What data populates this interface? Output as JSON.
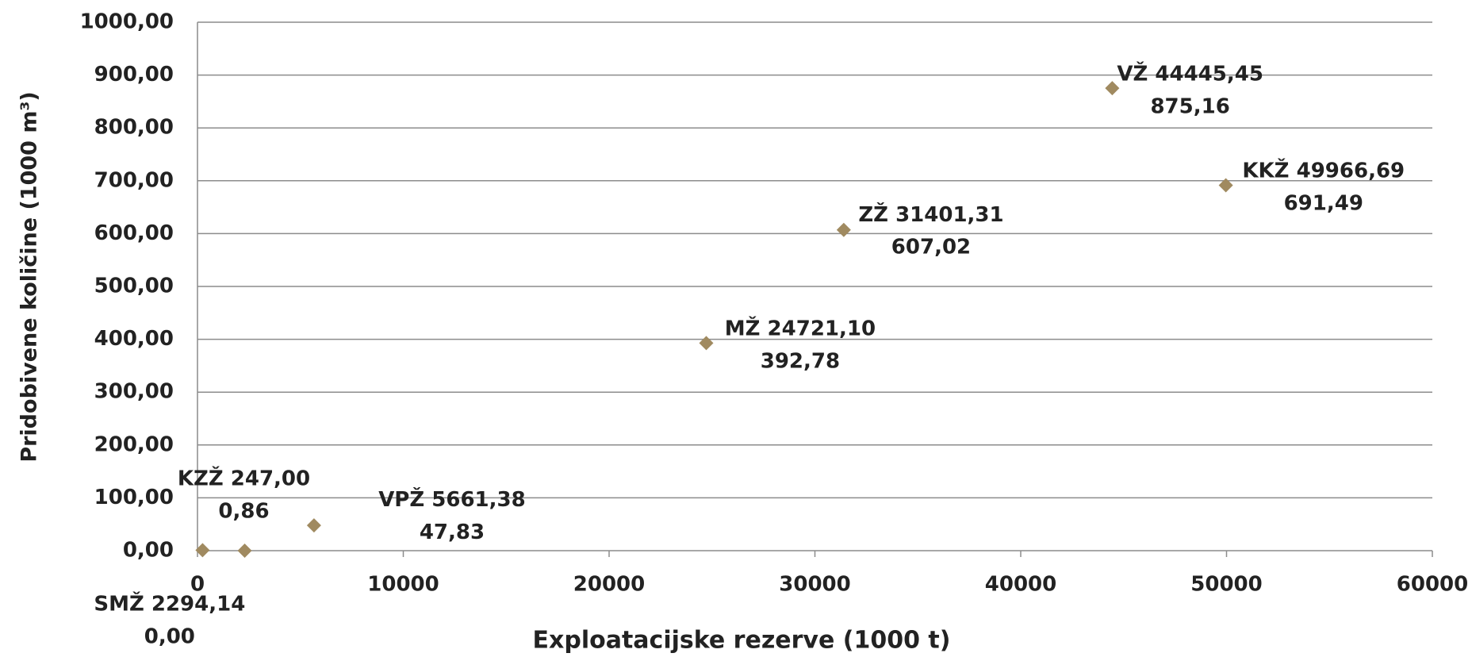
{
  "chart_data": {
    "type": "scatter",
    "x_axis_label": "Exploatacijske rezerve (1000 t)",
    "y_axis_label": "Pridobivene količine (1000 m³)",
    "series": [
      {
        "color": "#a08a60",
        "labels": [
          "KZŽ",
          "SMŽ",
          "VPŽ",
          "MŽ",
          "ZŽ",
          "VŽ",
          "KKŽ"
        ],
        "x": [
          247.0,
          2294.14,
          5661.38,
          24721.1,
          31401.31,
          44445.45,
          49966.69
        ],
        "x_labels": [
          "247,00",
          "2294,14",
          "5661,38",
          "24721,10",
          "31401,31",
          "44445,45",
          "49966,69"
        ],
        "values": [
          0.86,
          0.0,
          47.83,
          392.78,
          607.02,
          875.16,
          691.49
        ],
        "value_labels": [
          "0,86",
          "0,00",
          "47,83",
          "392,78",
          "607,02",
          "875,16",
          "691,49"
        ]
      }
    ],
    "xlim": [
      0,
      60000
    ],
    "xticks": [
      0,
      10000,
      20000,
      30000,
      40000,
      50000,
      60000
    ],
    "ylim": [
      0,
      1000
    ],
    "yticks": [
      {
        "value": 0,
        "label": "0,00"
      },
      {
        "value": 100,
        "label": "100,00"
      },
      {
        "value": 200,
        "label": "200,00"
      },
      {
        "value": 300,
        "label": "300,00"
      },
      {
        "value": 400,
        "label": "400,00"
      },
      {
        "value": 500,
        "label": "500,00"
      },
      {
        "value": 600,
        "label": "600,00"
      },
      {
        "value": 700,
        "label": "700,00"
      },
      {
        "value": 800,
        "label": "800,00"
      },
      {
        "value": 900,
        "label": "900,00"
      },
      {
        "value": 1000,
        "label": "1000,00"
      }
    ],
    "grid": true
  }
}
